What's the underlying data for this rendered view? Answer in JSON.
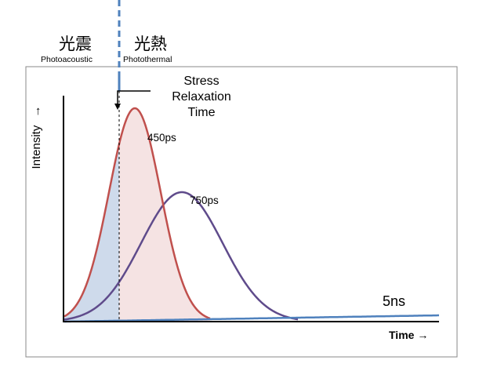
{
  "regions": {
    "left": {
      "title": "光震",
      "subtitle": "Photoacoustic",
      "fill": "#c5d4e8"
    },
    "right": {
      "title": "光熱",
      "subtitle": "Photothermal",
      "fill": "#f3dede"
    }
  },
  "annotation": {
    "lines": [
      "Stress",
      "Relaxation",
      "Time"
    ]
  },
  "axes": {
    "y_label": "Intensity",
    "y_arrow": "→",
    "x_label": "Time",
    "x_arrow": "→"
  },
  "pulses": [
    {
      "label": "450ps",
      "color": "#c0504d"
    },
    {
      "label": "750ps",
      "color": "#5f4b8b"
    },
    {
      "label": "5ns",
      "color": "#4f81bd"
    }
  ],
  "colors": {
    "divider": "#4f81bd",
    "frame": "#888888"
  }
}
